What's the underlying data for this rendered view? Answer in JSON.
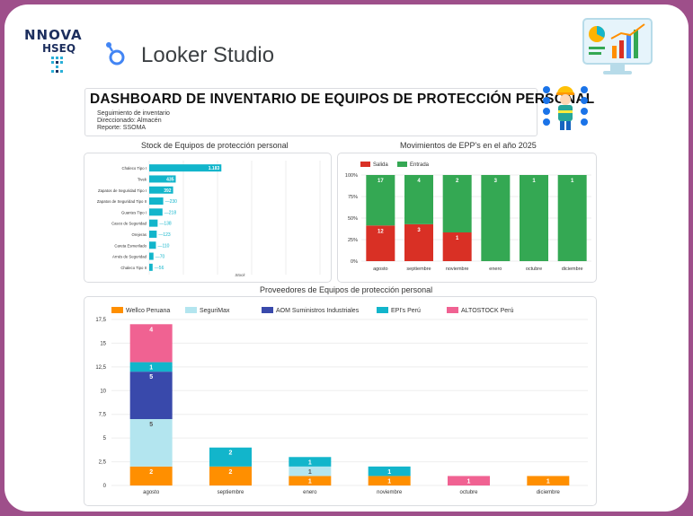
{
  "brand": {
    "logo_title": "NNOVA",
    "logo_subtitle": "HSEQ",
    "app_name": "Looker Studio"
  },
  "colors": {
    "frame": "#9e4f8a",
    "bar_teal": "#12b5cb",
    "salida": "#d93025",
    "entrada": "#34a853",
    "wellco": "#ff8f00",
    "segurimax": "#b3e5ef",
    "aom": "#3949ab",
    "epis": "#12b5cb",
    "altostock": "#f06292"
  },
  "header": {
    "title": "DASHBOARD DE INVENTARIO DE EQUIPOS DE PROTECCIÓN PERSONAL",
    "lines": [
      "Seguimiento de inventario",
      "Direccionado: Almacén",
      "Reporte: SSOMA"
    ]
  },
  "chart_data": [
    {
      "id": "stock",
      "type": "bar",
      "orientation": "horizontal",
      "title": "Stock de Equipos de protección personal",
      "xlabel": "Stock",
      "categories": [
        "Chaleco Tipo I",
        "Tivek",
        "Zapatos de Seguridad Tipo I",
        "Zapatos de Seguridad Tipo II",
        "Guantes Tipo I",
        "Casco de Seguridad",
        "Orejeras",
        "Careta Esmerilado",
        "Arnés de Seguridad",
        "Chaleco Tipo II"
      ],
      "values": [
        1183,
        435,
        392,
        230,
        218,
        138,
        123,
        110,
        70,
        56
      ],
      "value_labels": [
        "1.183",
        "435",
        "392",
        "230",
        "218",
        "138",
        "123",
        "110",
        "70",
        "56"
      ],
      "xlim": [
        0,
        2800
      ]
    },
    {
      "id": "movimientos",
      "type": "bar",
      "stacked": true,
      "percent": true,
      "title": "Movimientos de EPP's en el año 2025",
      "legend": [
        "Salida",
        "Entrada"
      ],
      "categories": [
        "agosto",
        "septiembre",
        "noviembre",
        "enero",
        "octubre",
        "diciembre"
      ],
      "series": [
        {
          "name": "Salida",
          "values": [
            12,
            3,
            1,
            0,
            0,
            0
          ]
        },
        {
          "name": "Entrada",
          "values": [
            17,
            4,
            2,
            3,
            1,
            1
          ]
        }
      ],
      "yticks": [
        "0%",
        "25%",
        "50%",
        "75%",
        "100%"
      ]
    },
    {
      "id": "proveedores",
      "type": "bar",
      "stacked": true,
      "title": "Proveedores de Equipos de protección personal",
      "legend": [
        "Wellco Peruana",
        "SeguriMax",
        "AOM Suministros Industriales",
        "EPI's Perú",
        "ALTOSTOCK Perú"
      ],
      "categories": [
        "agosto",
        "septiembre",
        "enero",
        "noviembre",
        "octubre",
        "diciembre"
      ],
      "series": [
        {
          "name": "Wellco Peruana",
          "values": [
            2,
            2,
            1,
            1,
            0,
            1
          ]
        },
        {
          "name": "SeguriMax",
          "values": [
            5,
            0,
            1,
            0,
            0,
            0
          ]
        },
        {
          "name": "AOM Suministros Industriales",
          "values": [
            5,
            0,
            0,
            0,
            0,
            0
          ]
        },
        {
          "name": "EPI's Perú",
          "values": [
            1,
            2,
            1,
            1,
            0,
            0
          ]
        },
        {
          "name": "ALTOSTOCK Perú",
          "values": [
            4,
            0,
            0,
            0,
            1,
            0
          ]
        }
      ],
      "ylim": [
        0,
        17.5
      ],
      "yticks": [
        "0",
        "2,5",
        "5",
        "7,5",
        "10",
        "12,5",
        "15",
        "17,5"
      ]
    }
  ]
}
